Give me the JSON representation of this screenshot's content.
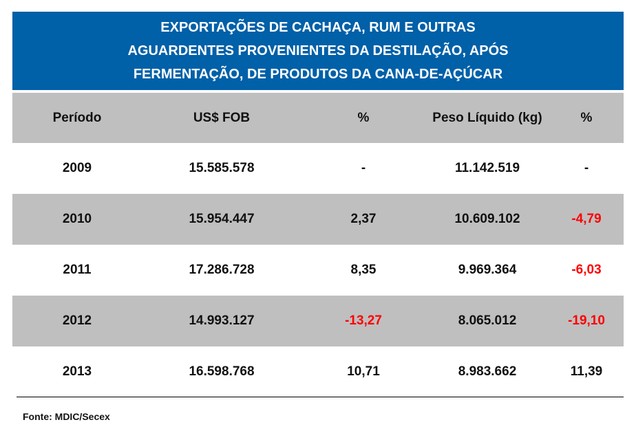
{
  "title": {
    "lines": [
      "EXPORTAÇÕES DE CACHAÇA, RUM E OUTRAS",
      "AGUARDENTES PROVENIENTES DA DESTILAÇÃO, APÓS",
      "FERMENTAÇÃO, DE PRODUTOS DA CANA-DE-AÇÚCAR"
    ]
  },
  "colors": {
    "title_bg": "#0060a8",
    "shaded_row_bg": "#bfbfbf",
    "negative_text": "#ff0000"
  },
  "table": {
    "headers": [
      "Período",
      "US$ FOB",
      "%",
      "Peso Líquido (kg)",
      "%"
    ],
    "rows": [
      [
        "2009",
        "15.585.578",
        "-",
        "11.142.519",
        "-"
      ],
      [
        "2010",
        "15.954.447",
        "2,37",
        "10.609.102",
        "-4,79"
      ],
      [
        "2011",
        "17.286.728",
        "8,35",
        "9.969.364",
        "-6,03"
      ],
      [
        "2012",
        "14.993.127",
        "-13,27",
        "8.065.012",
        "-19,10"
      ],
      [
        "2013",
        "16.598.768",
        "10,71",
        "8.983.662",
        "11,39"
      ]
    ]
  },
  "source": "Fonte: MDIC/Secex"
}
